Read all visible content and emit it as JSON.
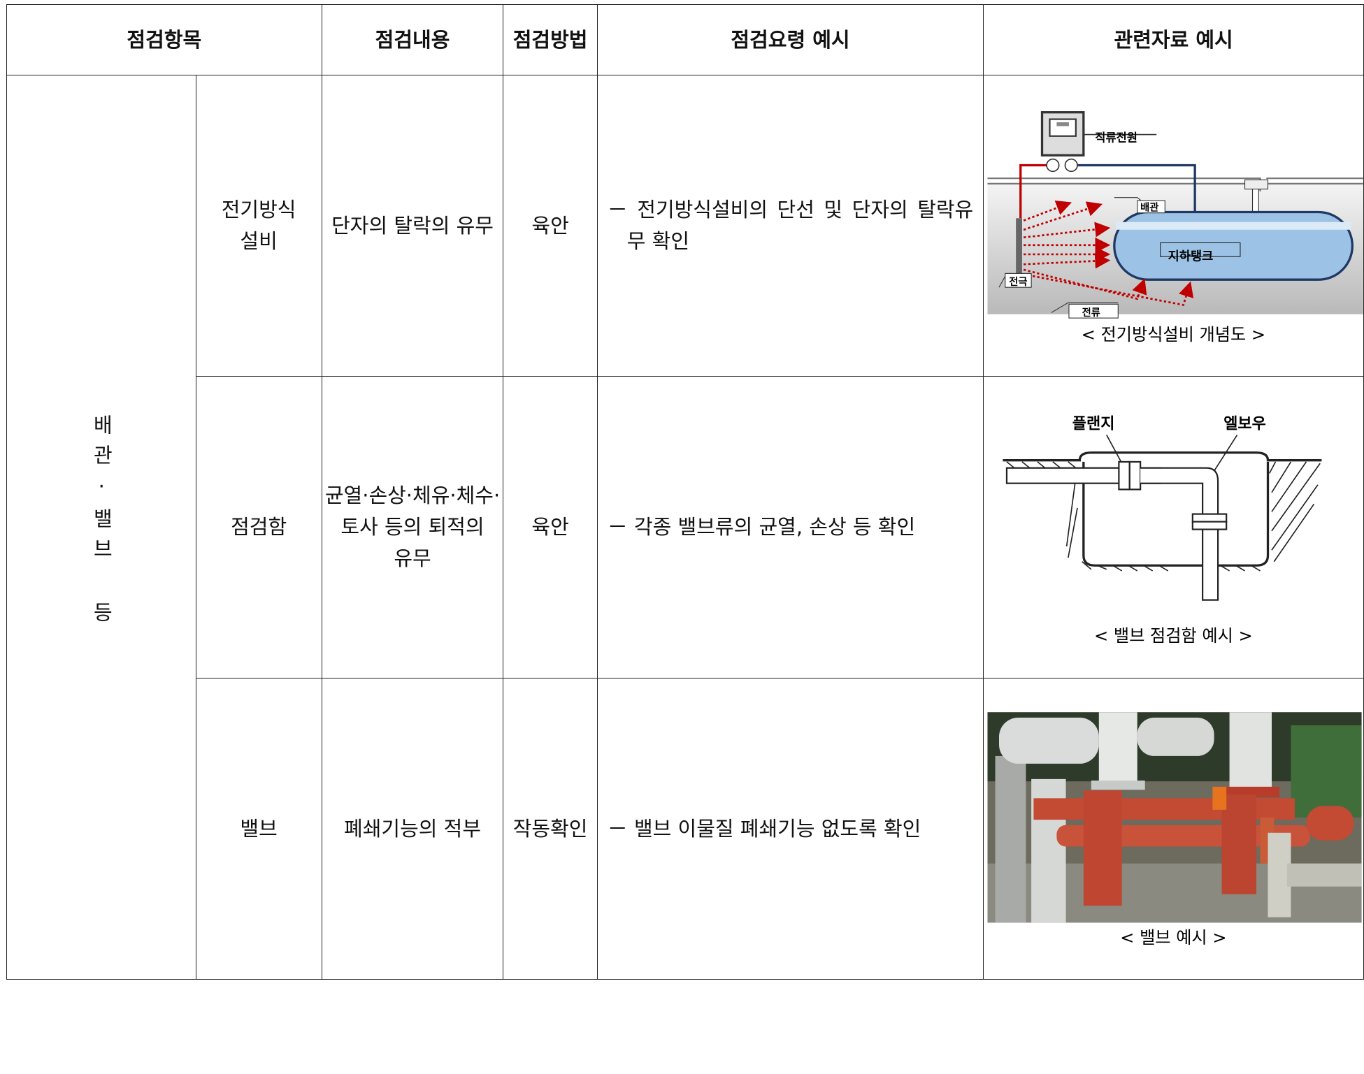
{
  "table": {
    "header": [
      "점검항목",
      "점검내용",
      "점검방법",
      "점검요령 예시",
      "관련자료 예시"
    ],
    "group": "배관·밸브 등",
    "rows": [
      {
        "item": "전기방식\n설비",
        "content": "단자의 탈락의 유무",
        "method": "육안",
        "guide": "－ 전기방식설비의 단선 및 단자의 탈락유무 확인",
        "figure": {
          "labels": [
            "직류전원",
            "배관",
            "지하탱크",
            "전극",
            "전류"
          ],
          "caption": "< 전기방식설비 개념도 >"
        }
      },
      {
        "item": "점검함",
        "content": "균열·손상·체유·체수·\n토사 등의 퇴적의\n유무",
        "method": "육안",
        "guide": "－ 각종 밸브류의 균열, 손상 등 확인",
        "figure": {
          "labels": [
            "플랜지",
            "엘보우"
          ],
          "caption": "< 밸브 점검함 예시 >"
        }
      },
      {
        "item": "밸브",
        "content": "폐쇄기능의 적부",
        "method": "작동확인",
        "guide": "－ 밸브 이물질 폐쇄기능 없도록 확인",
        "figure": {
          "caption": "< 밸브 예시 >"
        }
      }
    ]
  }
}
